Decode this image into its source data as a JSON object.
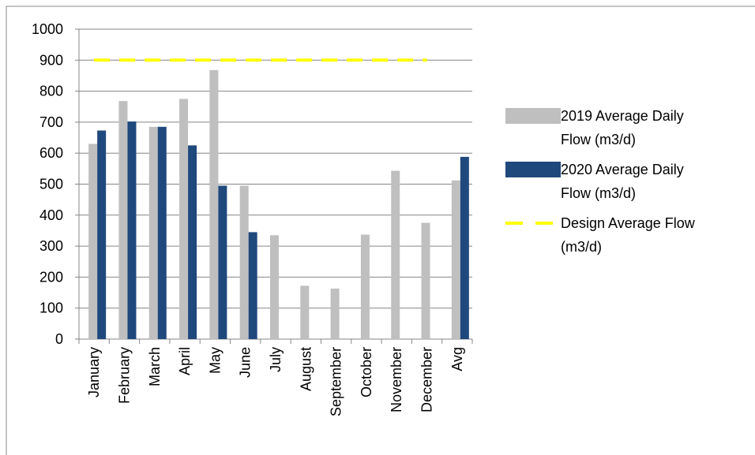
{
  "chart_data": {
    "type": "bar",
    "categories": [
      "January",
      "February",
      "March",
      "April",
      "May",
      "June",
      "July",
      "August",
      "September",
      "October",
      "November",
      "December",
      "Avg"
    ],
    "series": [
      {
        "name": "2019 Average Daily Flow (m3/d)",
        "color": "#bfbfbf",
        "values": [
          630,
          768,
          685,
          775,
          868,
          495,
          335,
          172,
          163,
          337,
          543,
          375,
          512
        ]
      },
      {
        "name": "2020 Average Daily Flow (m3/d)",
        "color": "#1f497d",
        "values": [
          673,
          702,
          685,
          625,
          495,
          345,
          null,
          null,
          null,
          null,
          null,
          null,
          588
        ]
      },
      {
        "name": "Design Average Flow (m3/d)",
        "color": "#ffff00",
        "type": "line",
        "dashed": true,
        "values": [
          900,
          900,
          900,
          900,
          900,
          900,
          900,
          900,
          900,
          900,
          900,
          900,
          null
        ]
      }
    ],
    "ylim": [
      0,
      1000
    ],
    "yticks": [
      0,
      100,
      200,
      300,
      400,
      500,
      600,
      700,
      800,
      900,
      1000
    ],
    "grid": true
  }
}
